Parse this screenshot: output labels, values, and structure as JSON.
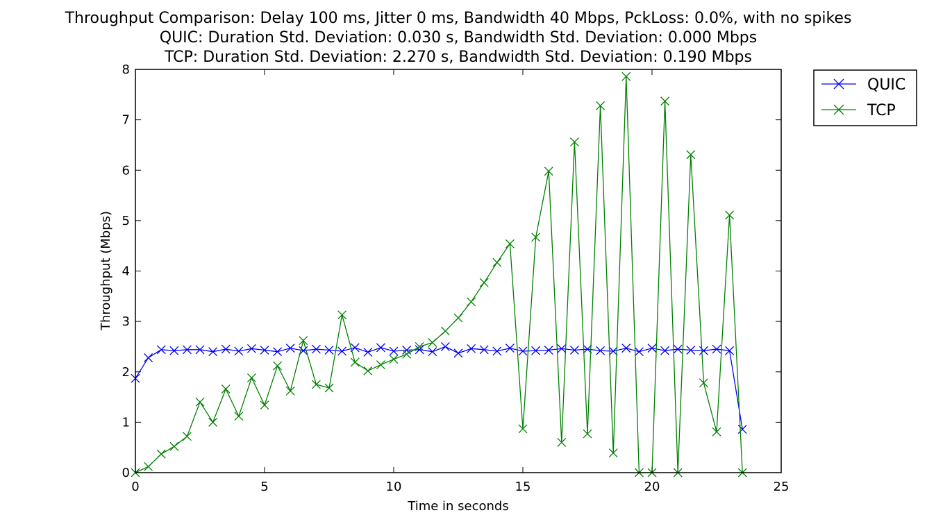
{
  "chart_data": {
    "type": "line",
    "title": [
      "Throughput Comparison: Delay 100 ms, Jitter 0 ms, Bandwidth 40 Mbps, PckLoss: 0.0%, with no spikes",
      "QUIC: Duration Std. Deviation: 0.030 s, Bandwidth Std. Deviation: 0.000 Mbps",
      "TCP: Duration Std. Deviation: 2.270 s, Bandwidth Std. Deviation: 0.190 Mbps"
    ],
    "xlabel": "Time in seconds",
    "ylabel": "Throughput (Mbps)",
    "xlim": [
      0,
      25
    ],
    "ylim": [
      0,
      8
    ],
    "xticks": [
      0,
      5,
      10,
      15,
      20,
      25
    ],
    "yticks": [
      0,
      1,
      2,
      3,
      4,
      5,
      6,
      7,
      8
    ],
    "grid": false,
    "legend_position": "outside-top-right",
    "series": [
      {
        "name": "QUIC",
        "color": "#0000ff",
        "marker": "x",
        "x": [
          0,
          0.5,
          1,
          1.5,
          2,
          2.5,
          3,
          3.5,
          4,
          4.5,
          5,
          5.5,
          6,
          6.5,
          7,
          7.5,
          8,
          8.5,
          9,
          9.5,
          10,
          10.5,
          11,
          11.5,
          12,
          12.5,
          13,
          13.5,
          14,
          14.5,
          15,
          15.5,
          16,
          16.5,
          17,
          17.5,
          18,
          18.5,
          19,
          19.5,
          20,
          20.5,
          21,
          21.5,
          22,
          22.5,
          23,
          23.5
        ],
        "y": [
          1.87,
          2.28,
          2.44,
          2.42,
          2.44,
          2.44,
          2.4,
          2.45,
          2.41,
          2.46,
          2.43,
          2.4,
          2.47,
          2.42,
          2.45,
          2.43,
          2.41,
          2.48,
          2.39,
          2.48,
          2.41,
          2.43,
          2.44,
          2.4,
          2.5,
          2.37,
          2.46,
          2.44,
          2.41,
          2.47,
          2.41,
          2.42,
          2.43,
          2.46,
          2.43,
          2.45,
          2.42,
          2.41,
          2.47,
          2.4,
          2.47,
          2.42,
          2.45,
          2.43,
          2.42,
          2.45,
          2.42,
          0.86
        ]
      },
      {
        "name": "TCP",
        "color": "#008000",
        "marker": "x",
        "x": [
          0,
          0.5,
          1,
          1.5,
          2,
          2.5,
          3,
          3.5,
          4,
          4.5,
          5,
          5.5,
          6,
          6.5,
          7,
          7.5,
          8,
          8.5,
          9,
          9.5,
          10,
          10.5,
          11,
          11.5,
          12,
          12.5,
          13,
          13.5,
          14,
          14.5,
          15,
          15.5,
          16,
          16.5,
          17,
          17.5,
          18,
          18.5,
          19,
          19.5,
          20,
          20.5,
          21,
          21.5,
          22,
          22.5,
          23,
          23.5
        ],
        "y": [
          0.0,
          0.12,
          0.37,
          0.52,
          0.72,
          1.4,
          1.0,
          1.66,
          1.12,
          1.88,
          1.34,
          2.12,
          1.62,
          2.62,
          1.75,
          1.68,
          3.13,
          2.19,
          2.02,
          2.14,
          2.25,
          2.35,
          2.5,
          2.58,
          2.81,
          3.07,
          3.39,
          3.77,
          4.17,
          4.54,
          0.87,
          4.67,
          5.98,
          0.6,
          6.56,
          0.77,
          7.28,
          0.39,
          7.86,
          0.0,
          0.0,
          7.37,
          0.0,
          6.31,
          1.78,
          0.81,
          5.11,
          0.0
        ]
      }
    ]
  }
}
